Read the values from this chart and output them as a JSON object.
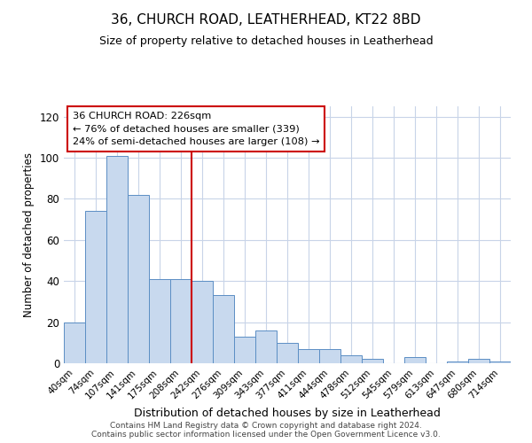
{
  "title": "36, CHURCH ROAD, LEATHERHEAD, KT22 8BD",
  "subtitle": "Size of property relative to detached houses in Leatherhead",
  "xlabel": "Distribution of detached houses by size in Leatherhead",
  "ylabel": "Number of detached properties",
  "bar_labels": [
    "40sqm",
    "74sqm",
    "107sqm",
    "141sqm",
    "175sqm",
    "208sqm",
    "242sqm",
    "276sqm",
    "309sqm",
    "343sqm",
    "377sqm",
    "411sqm",
    "444sqm",
    "478sqm",
    "512sqm",
    "545sqm",
    "579sqm",
    "613sqm",
    "647sqm",
    "680sqm",
    "714sqm"
  ],
  "bar_heights": [
    20,
    74,
    101,
    82,
    41,
    41,
    40,
    33,
    13,
    16,
    10,
    7,
    7,
    4,
    2,
    0,
    3,
    0,
    1,
    2,
    1
  ],
  "bar_color": "#c8d9ee",
  "bar_edge_color": "#5b8ec4",
  "vline_x": 5.5,
  "vline_color": "#cc0000",
  "annotation_title": "36 CHURCH ROAD: 226sqm",
  "annotation_line1": "← 76% of detached houses are smaller (339)",
  "annotation_line2": "24% of semi-detached houses are larger (108) →",
  "ylim": [
    0,
    125
  ],
  "yticks": [
    0,
    20,
    40,
    60,
    80,
    100,
    120
  ],
  "footer1": "Contains HM Land Registry data © Crown copyright and database right 2024.",
  "footer2": "Contains public sector information licensed under the Open Government Licence v3.0.",
  "background_color": "#ffffff",
  "grid_color": "#c8d4e8",
  "annot_box_color": "#cc0000"
}
